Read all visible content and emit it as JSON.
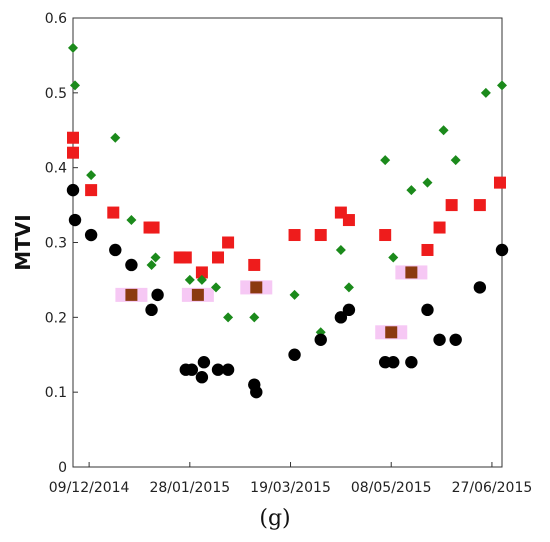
{
  "chart_data": {
    "type": "scatter",
    "title": "",
    "xlabel": "",
    "ylabel": "MTVI",
    "ylim": [
      0,
      0.6
    ],
    "yticks": [
      0,
      0.1,
      0.2,
      0.3,
      0.4,
      0.5,
      0.6
    ],
    "ytick_labels": [
      "0",
      "0.1",
      "0.2",
      "0.3",
      "0.4",
      "0.5",
      "0.6"
    ],
    "xlim": [
      "2014-12-01",
      "2015-07-02"
    ],
    "xticks": [
      "2014-12-09",
      "2015-01-28",
      "2015-03-19",
      "2015-05-08",
      "2015-06-27"
    ],
    "xtick_labels": [
      "09/12/2014",
      "28/01/2015",
      "19/03/2015",
      "08/05/2015",
      "27/06/2015"
    ],
    "grid": false,
    "series": [
      {
        "marker": "square",
        "color": "#ee1c1c",
        "points": [
          [
            "2014-12-01",
            0.44
          ],
          [
            "2014-12-01",
            0.42
          ],
          [
            "2014-12-10",
            0.37
          ],
          [
            "2014-12-21",
            0.34
          ],
          [
            "2015-01-08",
            0.32
          ],
          [
            "2015-01-10",
            0.32
          ],
          [
            "2015-01-23",
            0.28
          ],
          [
            "2015-01-26",
            0.28
          ],
          [
            "2015-02-03",
            0.26
          ],
          [
            "2015-02-11",
            0.28
          ],
          [
            "2015-02-16",
            0.3
          ],
          [
            "2015-03-01",
            0.27
          ],
          [
            "2015-03-21",
            0.31
          ],
          [
            "2015-04-03",
            0.31
          ],
          [
            "2015-04-13",
            0.34
          ],
          [
            "2015-04-17",
            0.33
          ],
          [
            "2015-05-05",
            0.31
          ],
          [
            "2015-05-26",
            0.29
          ],
          [
            "2015-06-01",
            0.32
          ],
          [
            "2015-06-07",
            0.35
          ],
          [
            "2015-06-21",
            0.35
          ],
          [
            "2015-07-01",
            0.38
          ]
        ]
      },
      {
        "marker": "square",
        "color": "#8b3a10",
        "points": [
          [
            "2014-12-30",
            0.23
          ],
          [
            "2015-02-01",
            0.23
          ],
          [
            "2015-03-02",
            0.24
          ],
          [
            "2015-05-08",
            0.18
          ],
          [
            "2015-05-18",
            0.26
          ]
        ]
      },
      {
        "marker": "diamond",
        "color": "#1b8a1b",
        "points": [
          [
            "2014-12-01",
            0.56
          ],
          [
            "2014-12-02",
            0.51
          ],
          [
            "2014-12-10",
            0.39
          ],
          [
            "2014-12-22",
            0.44
          ],
          [
            "2014-12-30",
            0.33
          ],
          [
            "2015-01-09",
            0.27
          ],
          [
            "2015-01-11",
            0.28
          ],
          [
            "2015-01-28",
            0.25
          ],
          [
            "2015-02-03",
            0.25
          ],
          [
            "2015-02-10",
            0.24
          ],
          [
            "2015-02-16",
            0.2
          ],
          [
            "2015-03-01",
            0.2
          ],
          [
            "2015-03-21",
            0.23
          ],
          [
            "2015-04-03",
            0.18
          ],
          [
            "2015-04-13",
            0.29
          ],
          [
            "2015-04-17",
            0.24
          ],
          [
            "2015-05-05",
            0.41
          ],
          [
            "2015-05-09",
            0.28
          ],
          [
            "2015-05-18",
            0.37
          ],
          [
            "2015-05-26",
            0.38
          ],
          [
            "2015-06-03",
            0.45
          ],
          [
            "2015-06-09",
            0.41
          ],
          [
            "2015-06-24",
            0.5
          ],
          [
            "2015-07-02",
            0.51
          ]
        ]
      },
      {
        "marker": "circle",
        "color": "#000000",
        "points": [
          [
            "2014-12-01",
            0.37
          ],
          [
            "2014-12-02",
            0.33
          ],
          [
            "2014-12-10",
            0.31
          ],
          [
            "2014-12-22",
            0.29
          ],
          [
            "2014-12-30",
            0.27
          ],
          [
            "2015-01-09",
            0.21
          ],
          [
            "2015-01-12",
            0.23
          ],
          [
            "2015-01-26",
            0.13
          ],
          [
            "2015-01-29",
            0.13
          ],
          [
            "2015-02-03",
            0.12
          ],
          [
            "2015-02-04",
            0.14
          ],
          [
            "2015-02-11",
            0.13
          ],
          [
            "2015-02-16",
            0.13
          ],
          [
            "2015-03-01",
            0.11
          ],
          [
            "2015-03-02",
            0.1
          ],
          [
            "2015-03-21",
            0.15
          ],
          [
            "2015-04-03",
            0.17
          ],
          [
            "2015-04-13",
            0.2
          ],
          [
            "2015-04-17",
            0.21
          ],
          [
            "2015-05-05",
            0.14
          ],
          [
            "2015-05-09",
            0.14
          ],
          [
            "2015-05-18",
            0.14
          ],
          [
            "2015-05-26",
            0.21
          ],
          [
            "2015-06-01",
            0.17
          ],
          [
            "2015-06-09",
            0.17
          ],
          [
            "2015-06-21",
            0.24
          ],
          [
            "2015-07-02",
            0.29
          ]
        ]
      }
    ],
    "highlight_color": "#f6c8f4"
  },
  "caption": "(g)"
}
